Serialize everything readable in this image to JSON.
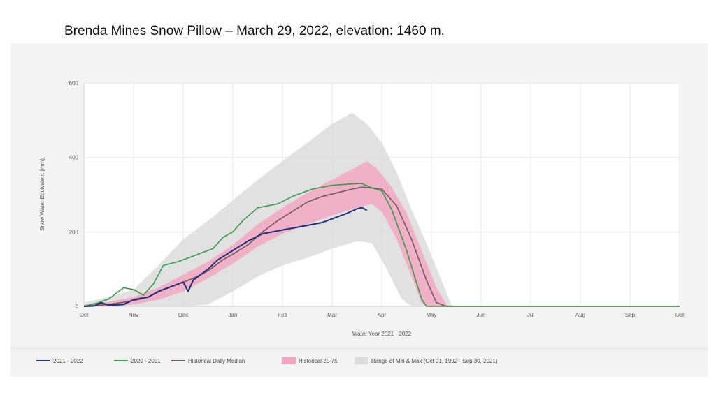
{
  "heading": {
    "site": "Brenda Mines Snow Pillow",
    "rest": " – March 29, 2022, elevation: 1460 m."
  },
  "chart_data": {
    "type": "line",
    "title": "",
    "xlabel": "Water Year 2021 - 2022",
    "ylabel": "Snow Water Equivalent (mm)",
    "ylim": [
      0,
      600
    ],
    "yticks": [
      0,
      200,
      400,
      600
    ],
    "x_month_labels": [
      "Oct",
      "Nov",
      "Dec",
      "Jan",
      "Feb",
      "Mar",
      "Apr",
      "May",
      "Jun",
      "Jul",
      "Aug",
      "Sep",
      "Oct"
    ],
    "grid": true,
    "legend_position": "bottom",
    "series": [
      {
        "name": "2021 - 2022",
        "color": "#1f2f7a",
        "kind": "line",
        "points": [
          [
            0,
            0
          ],
          [
            0.2,
            1
          ],
          [
            0.35,
            10
          ],
          [
            0.5,
            3
          ],
          [
            0.8,
            5
          ],
          [
            1.0,
            18
          ],
          [
            1.3,
            25
          ],
          [
            1.5,
            40
          ],
          [
            1.8,
            55
          ],
          [
            2.0,
            65
          ],
          [
            2.1,
            40
          ],
          [
            2.2,
            70
          ],
          [
            2.5,
            100
          ],
          [
            2.7,
            125
          ],
          [
            3.0,
            150
          ],
          [
            3.3,
            175
          ],
          [
            3.6,
            195
          ],
          [
            4.0,
            205
          ],
          [
            4.4,
            215
          ],
          [
            4.8,
            225
          ],
          [
            5.0,
            235
          ],
          [
            5.3,
            250
          ],
          [
            5.5,
            262
          ],
          [
            5.6,
            265
          ],
          [
            5.7,
            258
          ]
        ]
      },
      {
        "name": "2020 - 2021",
        "color": "#3a9a4a",
        "kind": "line",
        "points": [
          [
            0,
            0
          ],
          [
            0.3,
            10
          ],
          [
            0.5,
            20
          ],
          [
            0.8,
            50
          ],
          [
            1.0,
            45
          ],
          [
            1.2,
            30
          ],
          [
            1.4,
            60
          ],
          [
            1.6,
            110
          ],
          [
            1.9,
            120
          ],
          [
            2.3,
            140
          ],
          [
            2.6,
            155
          ],
          [
            2.8,
            185
          ],
          [
            3.0,
            200
          ],
          [
            3.2,
            230
          ],
          [
            3.5,
            265
          ],
          [
            3.9,
            275
          ],
          [
            4.2,
            295
          ],
          [
            4.6,
            315
          ],
          [
            5.0,
            325
          ],
          [
            5.3,
            328
          ],
          [
            5.6,
            330
          ],
          [
            5.8,
            318
          ],
          [
            6.0,
            310
          ],
          [
            6.2,
            260
          ],
          [
            6.5,
            150
          ],
          [
            6.8,
            20
          ],
          [
            6.9,
            0
          ],
          [
            12,
            0
          ]
        ]
      },
      {
        "name": "Historical Daily Median",
        "color": "#6f5a5a",
        "kind": "line",
        "points": [
          [
            0,
            0
          ],
          [
            0.5,
            5
          ],
          [
            1.0,
            15
          ],
          [
            1.3,
            25
          ],
          [
            1.6,
            45
          ],
          [
            1.9,
            60
          ],
          [
            2.2,
            75
          ],
          [
            2.5,
            95
          ],
          [
            2.8,
            125
          ],
          [
            3.0,
            140
          ],
          [
            3.3,
            165
          ],
          [
            3.6,
            200
          ],
          [
            3.9,
            230
          ],
          [
            4.2,
            255
          ],
          [
            4.5,
            280
          ],
          [
            4.8,
            295
          ],
          [
            5.1,
            305
          ],
          [
            5.4,
            315
          ],
          [
            5.6,
            320
          ],
          [
            5.8,
            318
          ],
          [
            6.0,
            315
          ],
          [
            6.3,
            270
          ],
          [
            6.6,
            180
          ],
          [
            6.9,
            70
          ],
          [
            7.1,
            10
          ],
          [
            7.3,
            0
          ],
          [
            12,
            0
          ]
        ]
      },
      {
        "name": "Historical 25-75",
        "color": "#f1a7c3",
        "kind": "band",
        "upper": [
          [
            0,
            5
          ],
          [
            0.5,
            12
          ],
          [
            1.0,
            25
          ],
          [
            1.5,
            50
          ],
          [
            2.0,
            85
          ],
          [
            2.5,
            120
          ],
          [
            3.0,
            165
          ],
          [
            3.5,
            220
          ],
          [
            4.0,
            265
          ],
          [
            4.5,
            305
          ],
          [
            5.0,
            340
          ],
          [
            5.5,
            375
          ],
          [
            5.7,
            390
          ],
          [
            5.9,
            370
          ],
          [
            6.2,
            320
          ],
          [
            6.5,
            250
          ],
          [
            6.8,
            150
          ],
          [
            7.1,
            50
          ],
          [
            7.3,
            5
          ],
          [
            7.4,
            0
          ]
        ],
        "lower": [
          [
            0,
            0
          ],
          [
            0.5,
            0
          ],
          [
            1.0,
            5
          ],
          [
            1.5,
            18
          ],
          [
            2.0,
            40
          ],
          [
            2.5,
            75
          ],
          [
            3.0,
            115
          ],
          [
            3.5,
            160
          ],
          [
            4.0,
            195
          ],
          [
            4.5,
            220
          ],
          [
            5.0,
            245
          ],
          [
            5.5,
            265
          ],
          [
            5.8,
            275
          ],
          [
            6.0,
            255
          ],
          [
            6.3,
            180
          ],
          [
            6.6,
            80
          ],
          [
            6.8,
            10
          ],
          [
            6.9,
            0
          ],
          [
            7.4,
            0
          ]
        ]
      },
      {
        "name": "Range of Min & Max (Oct 01, 1992 - Sep 30, 2021)",
        "color": "#dcdcdc",
        "kind": "band",
        "upper": [
          [
            0,
            10
          ],
          [
            0.5,
            25
          ],
          [
            1.0,
            45
          ],
          [
            1.5,
            110
          ],
          [
            2.0,
            180
          ],
          [
            2.5,
            230
          ],
          [
            3.0,
            285
          ],
          [
            3.5,
            340
          ],
          [
            4.0,
            390
          ],
          [
            4.5,
            440
          ],
          [
            5.0,
            490
          ],
          [
            5.4,
            520
          ],
          [
            5.7,
            490
          ],
          [
            6.0,
            440
          ],
          [
            6.3,
            360
          ],
          [
            6.6,
            260
          ],
          [
            6.9,
            170
          ],
          [
            7.2,
            70
          ],
          [
            7.4,
            5
          ],
          [
            7.5,
            0
          ]
        ],
        "lower": [
          [
            0,
            0
          ],
          [
            2.0,
            0
          ],
          [
            2.5,
            5
          ],
          [
            3.0,
            40
          ],
          [
            3.5,
            80
          ],
          [
            4.0,
            110
          ],
          [
            4.5,
            130
          ],
          [
            5.0,
            155
          ],
          [
            5.5,
            175
          ],
          [
            5.8,
            170
          ],
          [
            6.1,
            100
          ],
          [
            6.4,
            20
          ],
          [
            6.6,
            0
          ],
          [
            7.5,
            0
          ]
        ]
      }
    ]
  }
}
